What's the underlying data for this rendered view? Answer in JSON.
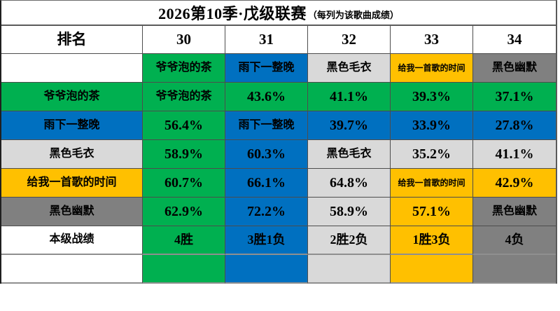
{
  "title": {
    "main": "2026第10季·戊级联赛",
    "sub": "（每列为该歌曲成绩）"
  },
  "colors": {
    "green": "#00B050",
    "blue": "#0070C0",
    "lgray": "#D9D9D9",
    "yellow": "#FFC000",
    "dgray": "#808080"
  },
  "header": {
    "rank": "排名",
    "cols": [
      "30",
      "31",
      "32",
      "33",
      "34"
    ]
  },
  "songs": [
    {
      "name": "爷爷泡的茶",
      "color": "green"
    },
    {
      "name": "雨下一整晚",
      "color": "blue"
    },
    {
      "name": "黑色毛衣",
      "color": "lgray"
    },
    {
      "name": "给我一首歌的时间",
      "color": "yellow"
    },
    {
      "name": "黑色幽默",
      "color": "dgray"
    }
  ],
  "song_row": [
    "",
    "爷爷泡的茶",
    "雨下一整晚",
    "黑色毛衣",
    "给我一首歌的时间",
    "黑色幽默"
  ],
  "matrix": [
    {
      "label": "爷爷泡的茶",
      "cells": [
        "爷爷泡的茶",
        "43.6%",
        "41.1%",
        "39.3%",
        "37.1%"
      ]
    },
    {
      "label": "雨下一整晚",
      "cells": [
        "56.4%",
        "雨下一整晚",
        "39.7%",
        "33.9%",
        "27.8%"
      ]
    },
    {
      "label": "黑色毛衣",
      "cells": [
        "58.9%",
        "60.3%",
        "黑色毛衣",
        "35.2%",
        "41.1%"
      ]
    },
    {
      "label": "给我一首歌的时间",
      "cells": [
        "60.7%",
        "66.1%",
        "64.8%",
        "给我一首歌的时间",
        "42.9%"
      ]
    },
    {
      "label": "黑色幽默",
      "cells": [
        "62.9%",
        "72.2%",
        "58.9%",
        "57.1%",
        "黑色幽默"
      ]
    }
  ],
  "record_row": {
    "label": "本级战绩",
    "cells": [
      "4胜",
      "3胜1负",
      "2胜2负",
      "1胜3负",
      "4负"
    ]
  }
}
